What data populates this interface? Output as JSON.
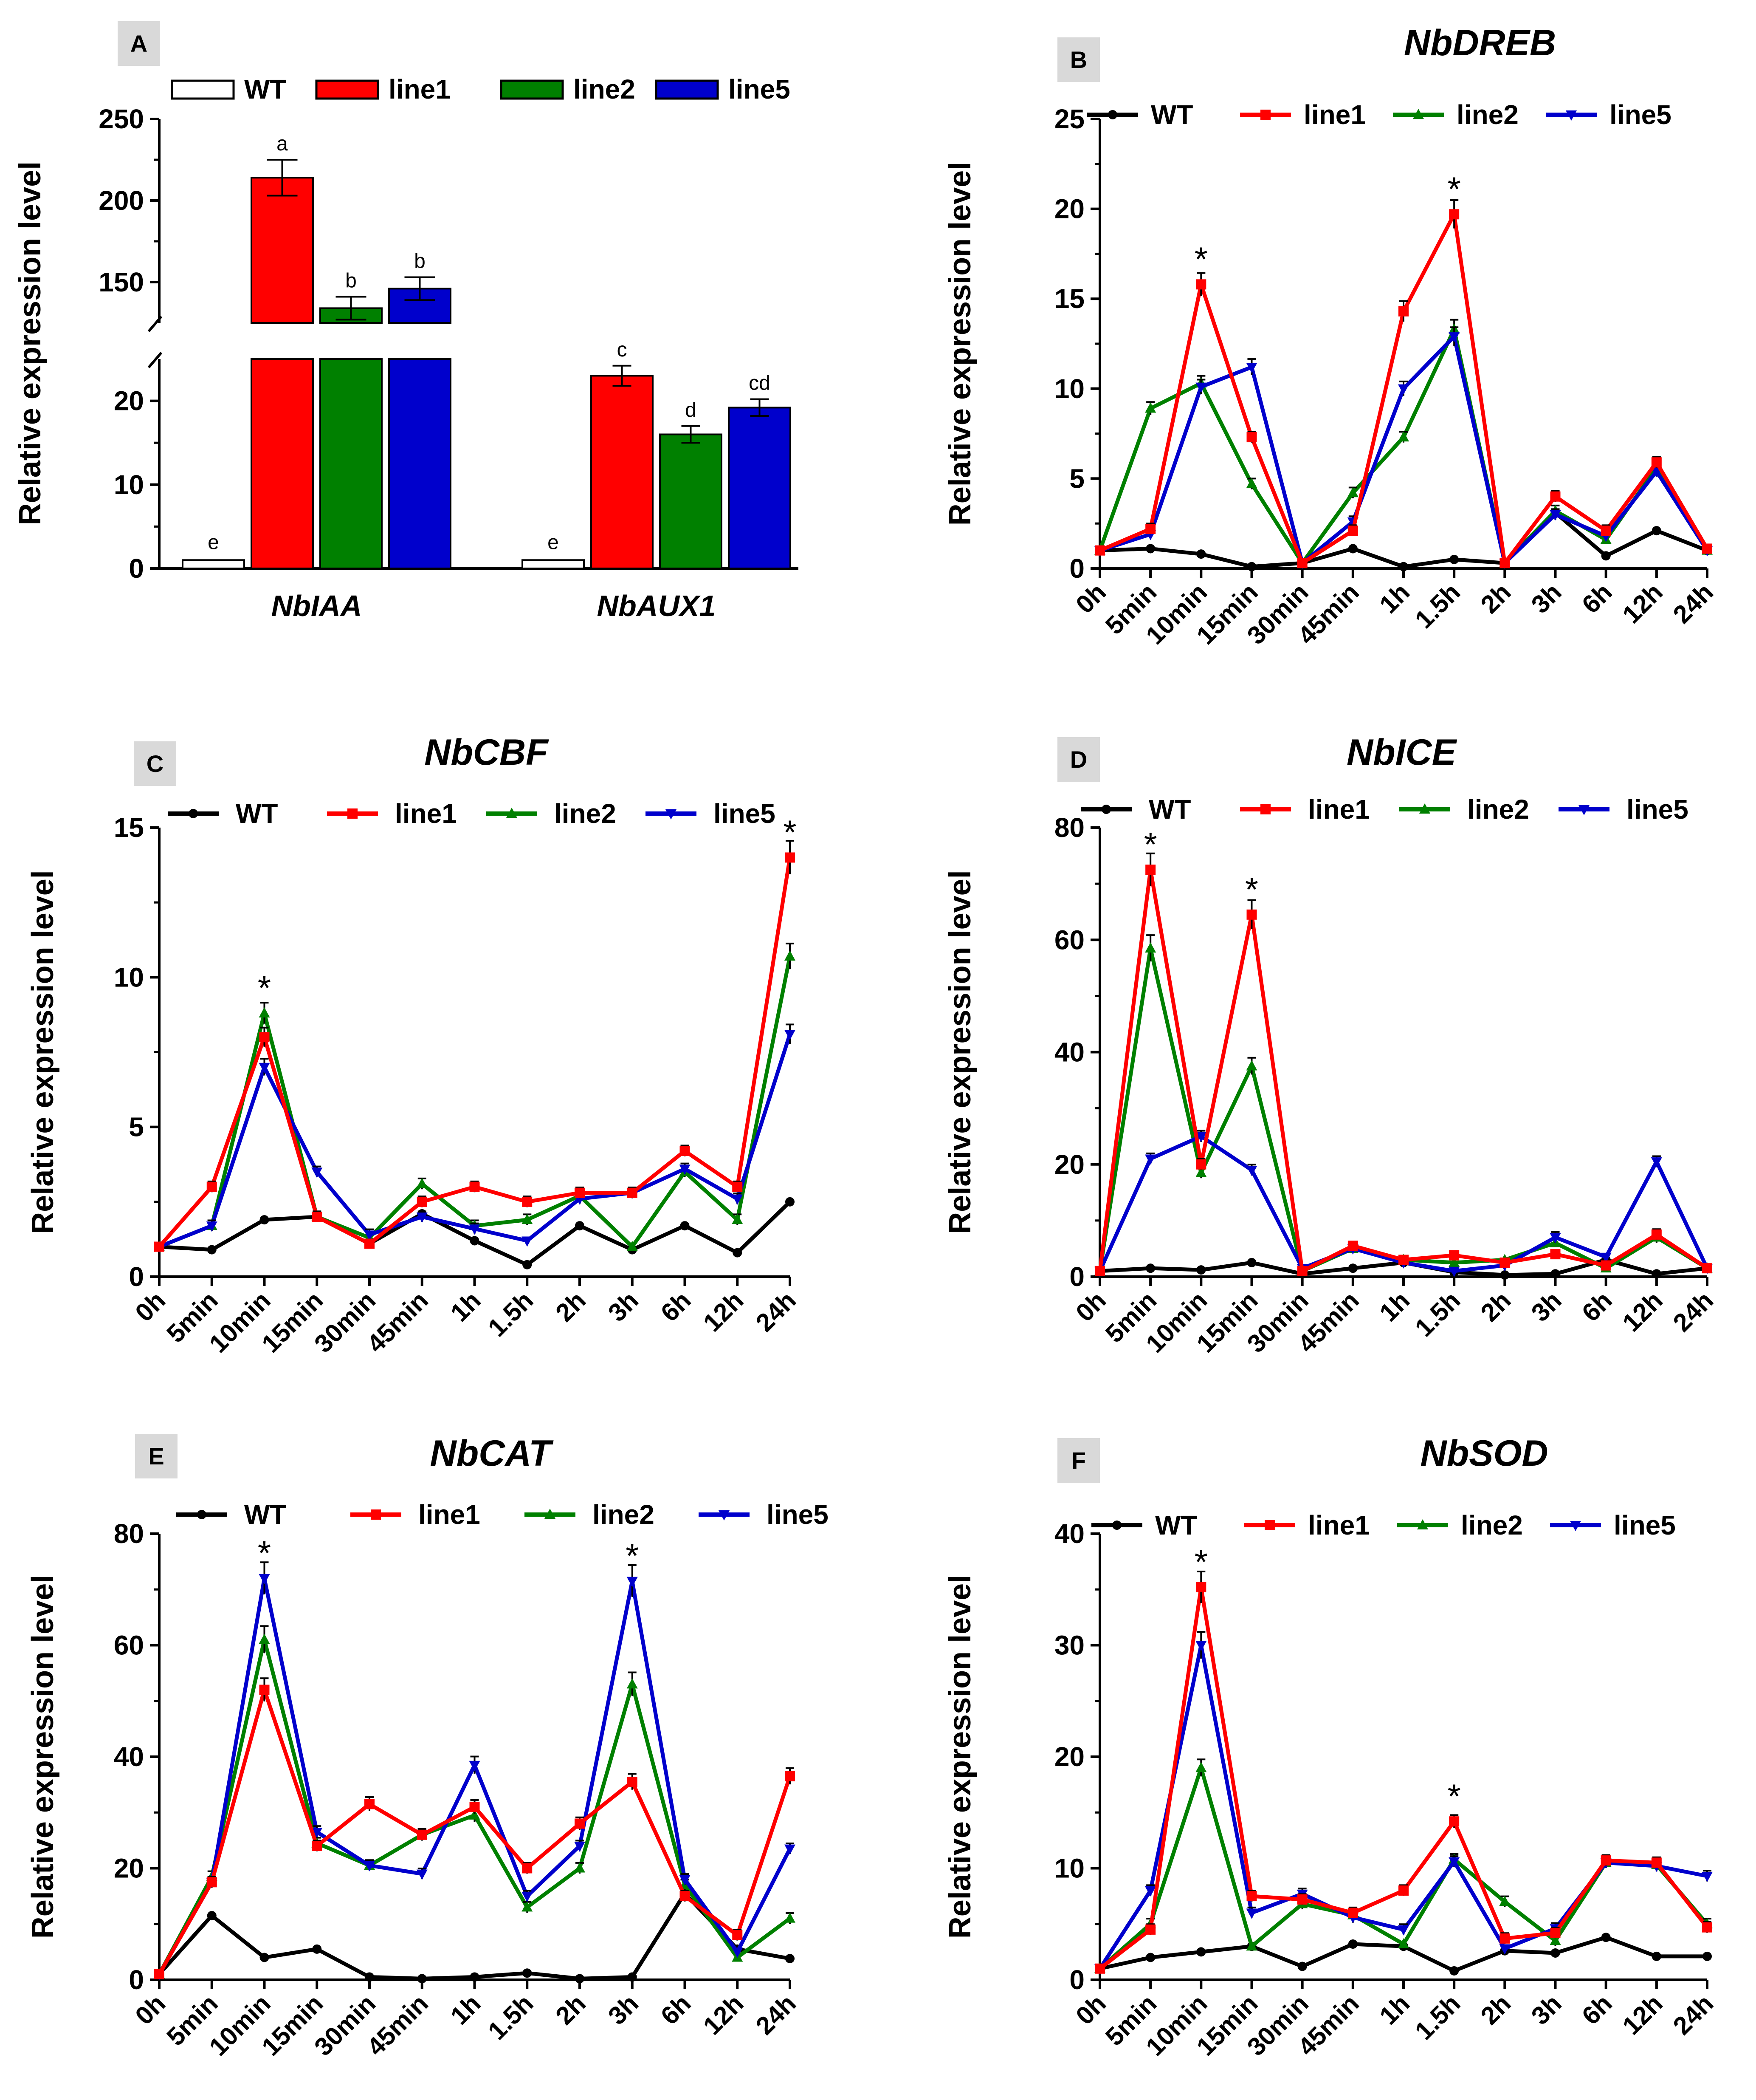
{
  "figure": {
    "colors": {
      "WT": "#000000",
      "line1": "#ff0000",
      "line2": "#008000",
      "line5": "#0000cc"
    }
  },
  "chart_data": [
    {
      "type": "bar",
      "panel": "A",
      "title": "",
      "ylabel": "Relative expression level",
      "xlabel": "",
      "y_axis_break": [
        25,
        125
      ],
      "ylim_lower": [
        0,
        25
      ],
      "ylim_upper": [
        125,
        250
      ],
      "yticks_lower": [
        "0",
        "10",
        "20"
      ],
      "yticks_upper": [
        "150",
        "200",
        "250"
      ],
      "categories": [
        "NbIAA",
        "NbAUX1"
      ],
      "legend": [
        "WT",
        "line1",
        "line2",
        "line5"
      ],
      "series": [
        {
          "name": "WT",
          "color": "#ffffff",
          "values": [
            1,
            1
          ],
          "errors": [
            0.2,
            0.2
          ],
          "letters": [
            "e",
            "e"
          ]
        },
        {
          "name": "line1",
          "color": "#ff0000",
          "values": [
            214,
            23
          ],
          "errors": [
            11,
            1.2
          ],
          "letters": [
            "a",
            "c"
          ]
        },
        {
          "name": "line2",
          "color": "#008000",
          "values": [
            134,
            16
          ],
          "errors": [
            7,
            1
          ],
          "letters": [
            "b",
            "d"
          ]
        },
        {
          "name": "line5",
          "color": "#0000cc",
          "values": [
            146,
            19.2
          ],
          "errors": [
            7,
            1
          ],
          "letters": [
            "b",
            "cd"
          ]
        }
      ]
    },
    {
      "type": "line",
      "panel": "B",
      "title": "NbDREB",
      "ylabel": "Relative expression level",
      "ylim": [
        0,
        25
      ],
      "yticks": [
        0,
        5,
        10,
        15,
        20,
        25
      ],
      "x": [
        "0h",
        "5min",
        "10min",
        "15min",
        "30min",
        "45min",
        "1h",
        "1.5h",
        "2h",
        "3h",
        "6h",
        "12h",
        "24h"
      ],
      "legend": [
        "WT",
        "line1",
        "line2",
        "line5"
      ],
      "series": [
        {
          "name": "WT",
          "values": [
            1,
            1.1,
            0.8,
            0.1,
            0.3,
            1.1,
            0.1,
            0.5,
            0.3,
            3.1,
            0.7,
            2.1,
            1
          ]
        },
        {
          "name": "line1",
          "values": [
            1,
            2.2,
            15.8,
            7.3,
            0.3,
            2.1,
            14.3,
            19.7,
            0.3,
            4,
            2.1,
            5.9,
            1.1
          ]
        },
        {
          "name": "line2",
          "values": [
            1,
            8.9,
            10.3,
            4.7,
            0.3,
            4.2,
            7.3,
            13.3,
            0.3,
            3.2,
            1.6,
            5.6,
            1
          ]
        },
        {
          "name": "line5",
          "values": [
            1,
            1.9,
            10.1,
            11.2,
            0.3,
            2.6,
            10,
            12.9,
            0.3,
            3,
            1.8,
            5.4,
            1
          ]
        }
      ],
      "stars_at": [
        2,
        7
      ]
    },
    {
      "type": "line",
      "panel": "C",
      "title": "NbCBF",
      "ylabel": "Relative expression level",
      "ylim": [
        0,
        15
      ],
      "yticks": [
        0,
        5,
        10,
        15
      ],
      "x": [
        "0h",
        "5min",
        "10min",
        "15min",
        "30min",
        "45min",
        "1h",
        "1.5h",
        "2h",
        "3h",
        "6h",
        "12h",
        "24h"
      ],
      "legend": [
        "WT",
        "line1",
        "line2",
        "line5"
      ],
      "series": [
        {
          "name": "WT",
          "values": [
            1,
            0.9,
            1.9,
            2,
            1.1,
            2.1,
            1.2,
            0.4,
            1.7,
            0.9,
            1.7,
            0.8,
            2.5
          ]
        },
        {
          "name": "line1",
          "values": [
            1,
            3,
            8,
            2,
            1.1,
            2.5,
            3,
            2.5,
            2.8,
            2.8,
            4.2,
            3,
            14
          ]
        },
        {
          "name": "line2",
          "values": [
            1,
            1.7,
            8.8,
            2,
            1.3,
            3.1,
            1.7,
            1.9,
            2.7,
            1,
            3.5,
            1.9,
            10.7
          ]
        },
        {
          "name": "line5",
          "values": [
            1,
            1.7,
            7,
            3.5,
            1.4,
            2,
            1.6,
            1.2,
            2.6,
            2.8,
            3.6,
            2.6,
            8.1
          ]
        }
      ],
      "stars_at": [
        2,
        12
      ]
    },
    {
      "type": "line",
      "panel": "D",
      "title": "NbICE",
      "ylabel": "Relative expression level",
      "ylim": [
        0,
        80
      ],
      "yticks": [
        0,
        20,
        40,
        60,
        80
      ],
      "x": [
        "0h",
        "5min",
        "10min",
        "15min",
        "30min",
        "45min",
        "1h",
        "1.5h",
        "2h",
        "3h",
        "6h",
        "12h",
        "24h"
      ],
      "legend": [
        "WT",
        "line1",
        "line2",
        "line5"
      ],
      "series": [
        {
          "name": "WT",
          "values": [
            1,
            1.5,
            1.2,
            2.5,
            0.5,
            1.5,
            2.5,
            0.8,
            0.3,
            0.5,
            3,
            0.5,
            1.5
          ]
        },
        {
          "name": "line1",
          "values": [
            1,
            72.5,
            20,
            64.5,
            1,
            5.5,
            3,
            3.8,
            2.5,
            4,
            2,
            7.5,
            1.5
          ]
        },
        {
          "name": "line2",
          "values": [
            1,
            58.5,
            18.5,
            37.5,
            1,
            5,
            3,
            2.5,
            3,
            6,
            1.5,
            7,
            1.5
          ]
        },
        {
          "name": "line5",
          "values": [
            1,
            21,
            25,
            19,
            1.5,
            5,
            2.5,
            1,
            2,
            7,
            3.5,
            20.5,
            1.5
          ]
        }
      ],
      "stars_at": [
        1,
        3
      ]
    },
    {
      "type": "line",
      "panel": "E",
      "title": "NbCAT",
      "ylabel": "Relative expression level",
      "ylim": [
        0,
        80
      ],
      "yticks": [
        0,
        20,
        40,
        60,
        80
      ],
      "x": [
        "0h",
        "5min",
        "10min",
        "15min",
        "30min",
        "45min",
        "1h",
        "1.5h",
        "2h",
        "3h",
        "6h",
        "12h",
        "24h"
      ],
      "legend": [
        "WT",
        "line1",
        "line2",
        "line5"
      ],
      "series": [
        {
          "name": "WT",
          "values": [
            1,
            11.5,
            4,
            5.5,
            0.5,
            0.2,
            0.5,
            1.2,
            0.2,
            0.5,
            15.5,
            5.5,
            3.8
          ]
        },
        {
          "name": "line1",
          "values": [
            1,
            17.5,
            52,
            24,
            31.5,
            26,
            31,
            20,
            28,
            35.5,
            15,
            8,
            36.5
          ]
        },
        {
          "name": "line2",
          "values": [
            1,
            18.5,
            61,
            24.5,
            20.5,
            26,
            29.5,
            13,
            20,
            53,
            17,
            4,
            11
          ]
        },
        {
          "name": "line5",
          "values": [
            1,
            17.5,
            72,
            26.5,
            20.5,
            19,
            38.5,
            15,
            24,
            71.5,
            18,
            5,
            23.5
          ]
        }
      ],
      "stars_at": [
        2,
        9
      ]
    },
    {
      "type": "line",
      "panel": "F",
      "title": "NbSOD",
      "ylabel": "Relative expression level",
      "ylim": [
        0,
        40
      ],
      "yticks": [
        0,
        10,
        20,
        30,
        40
      ],
      "x": [
        "0h",
        "5min",
        "10min",
        "15min",
        "30min",
        "45min",
        "1h",
        "1.5h",
        "2h",
        "3h",
        "6h",
        "12h",
        "24h"
      ],
      "legend": [
        "WT",
        "line1",
        "line2",
        "line5"
      ],
      "series": [
        {
          "name": "WT",
          "values": [
            1,
            2,
            2.5,
            3,
            1.2,
            3.2,
            3,
            0.8,
            2.6,
            2.4,
            3.8,
            2.1,
            2.1
          ]
        },
        {
          "name": "line1",
          "values": [
            1,
            4.5,
            35.2,
            7.5,
            7.2,
            6,
            8,
            14.2,
            3.7,
            4.2,
            10.7,
            10.5,
            4.7
          ]
        },
        {
          "name": "line2",
          "values": [
            1,
            5,
            19,
            3,
            6.8,
            5.8,
            3.2,
            10.8,
            7,
            3.5,
            10.5,
            10.3,
            5
          ]
        },
        {
          "name": "line5",
          "values": [
            1,
            8,
            30,
            6,
            7.7,
            5.6,
            4.5,
            10.6,
            2.8,
            4.6,
            10.5,
            10.2,
            9.3
          ]
        }
      ],
      "stars_at": [
        2,
        7
      ]
    }
  ]
}
